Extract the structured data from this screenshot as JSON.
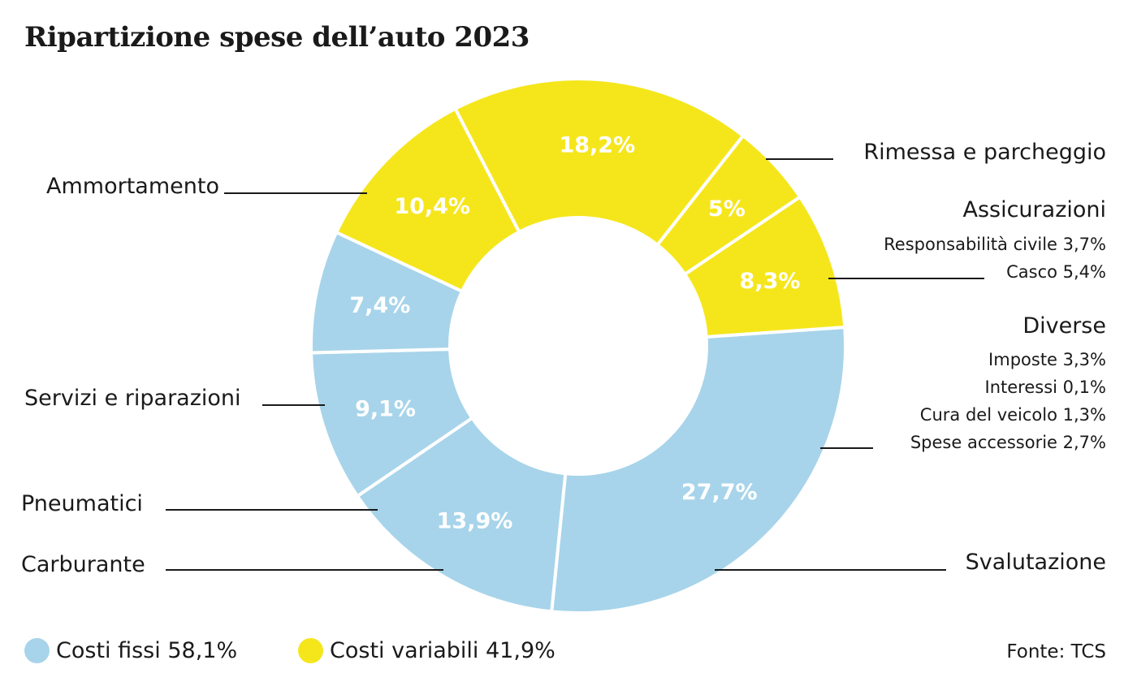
{
  "title": "Ripartizione spese dell’auto 2023",
  "colors": {
    "fixed": "#a7d4ea",
    "variable": "#f5e61c"
  },
  "chart_data": {
    "type": "pie",
    "title": "Ripartizione spese dell’auto 2023",
    "unit": "%",
    "slices": [
      {
        "label": "Ammortamento",
        "value": 27.7,
        "value_label": "27,7%",
        "group": "fixed"
      },
      {
        "label": "Rimessa e parcheggio",
        "value": 13.9,
        "value_label": "13,9%",
        "group": "fixed"
      },
      {
        "label": "Assicurazioni",
        "value": 9.1,
        "value_label": "9,1%",
        "group": "fixed",
        "details": [
          "Responsabilità civile 3,7%",
          "Casco 5,4%"
        ]
      },
      {
        "label": "Diverse",
        "value": 7.4,
        "value_label": "7,4%",
        "group": "fixed",
        "details": [
          "Imposte 3,3%",
          "Interessi 0,1%",
          "Cura del veicolo 1,3%",
          "Spese accessorie 2,7%"
        ]
      },
      {
        "label": "Svalutazione",
        "value": 10.4,
        "value_label": "10,4%",
        "group": "variable"
      },
      {
        "label": "Carburante",
        "value": 18.2,
        "value_label": "18,2%",
        "group": "variable"
      },
      {
        "label": "Pneumatici",
        "value": 5,
        "value_label": "5%",
        "group": "variable"
      },
      {
        "label": "Servizi e riparazioni",
        "value": 8.3,
        "value_label": "8,3%",
        "group": "variable"
      }
    ]
  },
  "legend": {
    "fixed": "Costi fissi 58,1%",
    "variable": "Costi variabili 41,9%"
  },
  "source": "Fonte: TCS"
}
